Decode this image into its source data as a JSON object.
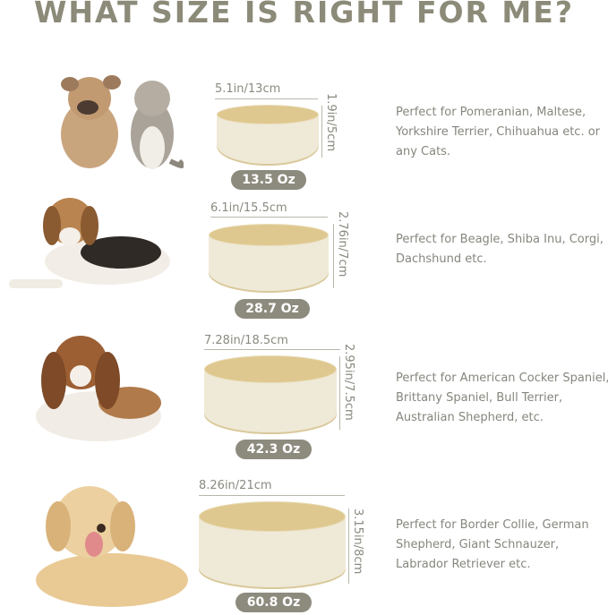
{
  "title": "WHAT SIZE IS RIGHT FOR ME?",
  "sizes": [
    {
      "width": "5.1in/13cm",
      "height": "1.9in/5cm",
      "capacity": "13.5 Oz",
      "description": "Perfect for Pomeranian, Maltese, Yorkshire Terrier, Chihuahua etc. or any Cats.",
      "pet": "french-bulldog-and-cat"
    },
    {
      "width": "6.1in/15.5cm",
      "height": "2.76in/7cm",
      "capacity": "28.7 Oz",
      "description": "Perfect for Beagle, Shiba Inu, Corgi, Dachshund etc.",
      "pet": "beagle"
    },
    {
      "width": "7.28in/18.5cm",
      "height": "2.95in/7.5cm",
      "capacity": "42.3 Oz",
      "description": "Perfect for American Cocker Spaniel, Brittany Spaniel, Bull Terrier, Australian Shepherd, etc.",
      "pet": "cocker-spaniel"
    },
    {
      "width": "8.26in/21cm",
      "height": "3.15in/8cm",
      "capacity": "60.8 Oz",
      "description": "Perfect for Border Collie, German Shepherd, Giant Schnauzer, Labrador Retriever etc.",
      "pet": "labrador"
    }
  ],
  "colors": {
    "title": "#8c8a78",
    "bowl_top": "#dfc88f",
    "bowl_body": "#efe9d7",
    "pill": "#8d8b7e",
    "text": "#86867e"
  }
}
